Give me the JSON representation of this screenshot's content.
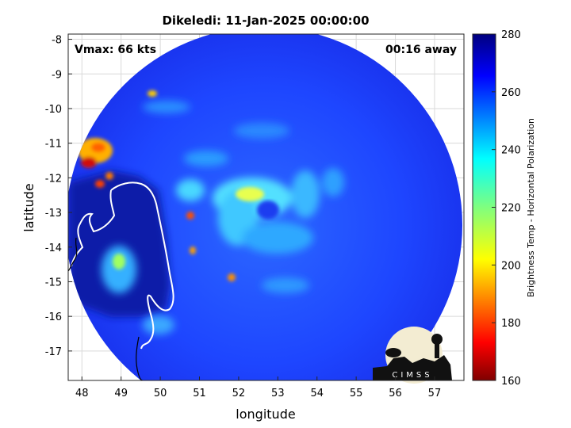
{
  "title": "Dikeledi: 11-Jan-2025 00:00:00",
  "vmax_text": "Vmax: 66 kts",
  "away_text": "00:16 away",
  "xlabel": "longitude",
  "ylabel": "latitude",
  "x_ticks": [
    "48",
    "49",
    "50",
    "51",
    "52",
    "53",
    "54",
    "55",
    "56",
    "57"
  ],
  "y_ticks": [
    "-8",
    "-9",
    "-10",
    "-11",
    "-12",
    "-13",
    "-14",
    "-15",
    "-16",
    "-17"
  ],
  "colorbar": {
    "label": "Brightness Temp - Horizontal Polarization",
    "ticks": [
      "280",
      "260",
      "240",
      "220",
      "200",
      "180",
      "160"
    ],
    "range": [
      160,
      280
    ]
  },
  "logo_text": "CIMSS",
  "map": {
    "lon_range": [
      47.65,
      57.75
    ],
    "lat_range": [
      -17.85,
      -7.85
    ],
    "swath_center": {
      "lon": 52.55,
      "lat": -12.65
    },
    "storm_eye": {
      "lon": 52.9,
      "lat": -13.0
    }
  },
  "colors": {
    "cold_background": "#1e3fff",
    "ring": "#3cc8ff",
    "hot_core": "#b01010",
    "land_dark": "#00007a",
    "coastline": "#ffffff"
  }
}
